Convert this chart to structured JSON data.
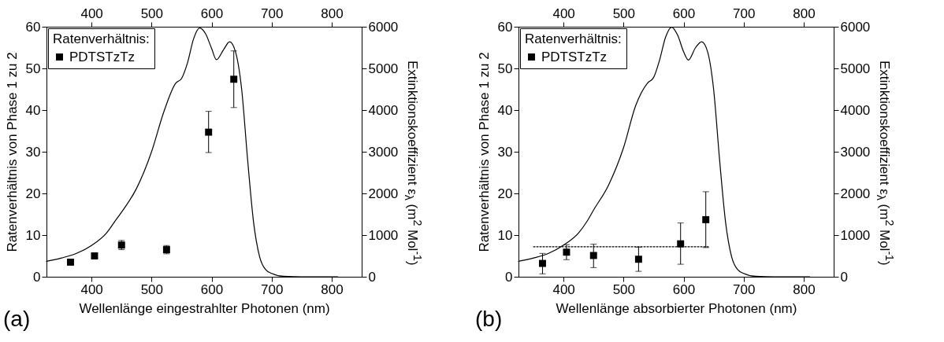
{
  "chart_data": [
    {
      "type": "scatter",
      "xlabel": "Wellenlänge eingestrahlter Photonen (nm)",
      "ylabel": "Ratenverhältnis von Phase 1 zu 2",
      "y2label": "Extinktionskoeffizient ε$_{λ}$ (m$^{2}$ Mol$^{-1}$)",
      "legend_title": "Ratenverhältnis:",
      "legend": "top left",
      "grid": false,
      "annotations": [
        "(a)"
      ],
      "xlim": [
        325,
        850
      ],
      "xticks": [
        400,
        500,
        600,
        700,
        800
      ],
      "x2lim": [
        325,
        850
      ],
      "x2ticks": [
        400,
        500,
        600,
        700,
        800
      ],
      "ylim": [
        0,
        60
      ],
      "yticks": [
        0,
        10,
        20,
        30,
        40,
        50,
        60
      ],
      "y2lim": [
        0,
        6000
      ],
      "y2ticks": [
        0,
        1000,
        2000,
        3000,
        4000,
        5000,
        6000
      ],
      "series": [
        {
          "name": "PDTSTzTz",
          "marker": "square",
          "color": "#000000",
          "x": [
            365,
            405,
            450,
            525,
            595,
            637
          ],
          "values": [
            3.5,
            5.0,
            7.6,
            6.5,
            34.7,
            47.4
          ],
          "errors": [
            [
              3.0,
              4.0
            ],
            [
              4.4,
              5.6
            ],
            [
              6.5,
              8.7
            ],
            [
              5.5,
              7.5
            ],
            [
              29.8,
              39.7
            ],
            [
              40.6,
              54.2
            ]
          ]
        },
        {
          "type": "line",
          "axis": "y2",
          "color": "#000000",
          "line_style": "solid",
          "marker": "none",
          "x": [
            325,
            350,
            375,
            400,
            425,
            440,
            450,
            475,
            500,
            520,
            540,
            550,
            560,
            570,
            580,
            590,
            600,
            608,
            620,
            630,
            640,
            650,
            660,
            670,
            680,
            690,
            700,
            720,
            750,
            810
          ],
          "values": [
            370,
            450,
            560,
            750,
            1050,
            1350,
            1550,
            2120,
            3000,
            3940,
            4640,
            4760,
            5140,
            5710,
            5970,
            5830,
            5480,
            5210,
            5450,
            5640,
            5390,
            4510,
            2810,
            1300,
            480,
            170,
            80,
            10,
            0,
            0
          ]
        }
      ]
    },
    {
      "type": "scatter",
      "xlabel": "Wellenlänge absorbierter Photonen (nm)",
      "ylabel": "Ratenverhältnis von Phase 1 zu 2",
      "y2label": "Extinktionskoeffizient ε$_{λ}$ (m$^{2}$ Mol$^{-1}$)",
      "legend_title": "Ratenverhältnis:",
      "legend": "top left",
      "grid": false,
      "annotations": [
        "(b)"
      ],
      "xlim": [
        325,
        850
      ],
      "xticks": [
        400,
        500,
        600,
        700,
        800
      ],
      "x2lim": [
        325,
        850
      ],
      "x2ticks": [
        400,
        500,
        600,
        700,
        800
      ],
      "ylim": [
        0,
        60
      ],
      "yticks": [
        0,
        10,
        20,
        30,
        40,
        50,
        60
      ],
      "y2lim": [
        0,
        6000
      ],
      "y2ticks": [
        0,
        1000,
        2000,
        3000,
        4000,
        5000,
        6000
      ],
      "series": [
        {
          "name": "PDTSTzTz",
          "marker": "square",
          "color": "#000000",
          "x": [
            365,
            405,
            450,
            525,
            595,
            637
          ],
          "values": [
            3.2,
            5.9,
            5.1,
            4.2,
            7.9,
            13.7
          ],
          "errors": [
            [
              0.7,
              5.6
            ],
            [
              4.1,
              7.7
            ],
            [
              2.2,
              7.8
            ],
            [
              1.3,
              7.1
            ],
            [
              3.0,
              12.9
            ],
            [
              7.0,
              20.4
            ]
          ]
        },
        {
          "type": "line",
          "axis": "y2",
          "color": "#000000",
          "line_style": "solid",
          "marker": "none",
          "x": [
            325,
            350,
            375,
            400,
            425,
            440,
            450,
            475,
            500,
            520,
            540,
            550,
            560,
            570,
            580,
            590,
            600,
            608,
            620,
            630,
            640,
            650,
            660,
            670,
            680,
            690,
            700,
            720,
            750,
            810
          ],
          "values": [
            370,
            450,
            560,
            760,
            1050,
            1350,
            1600,
            2200,
            3100,
            4100,
            4650,
            4780,
            5200,
            5750,
            5990,
            5800,
            5400,
            5200,
            5500,
            5640,
            5400,
            4500,
            2800,
            1300,
            480,
            170,
            80,
            10,
            0,
            0
          ]
        },
        {
          "type": "line",
          "color": "#000000",
          "line_style": "dotted",
          "marker": "none",
          "x": [
            350,
            643
          ],
          "values": [
            7.2,
            7.2
          ]
        }
      ]
    }
  ]
}
